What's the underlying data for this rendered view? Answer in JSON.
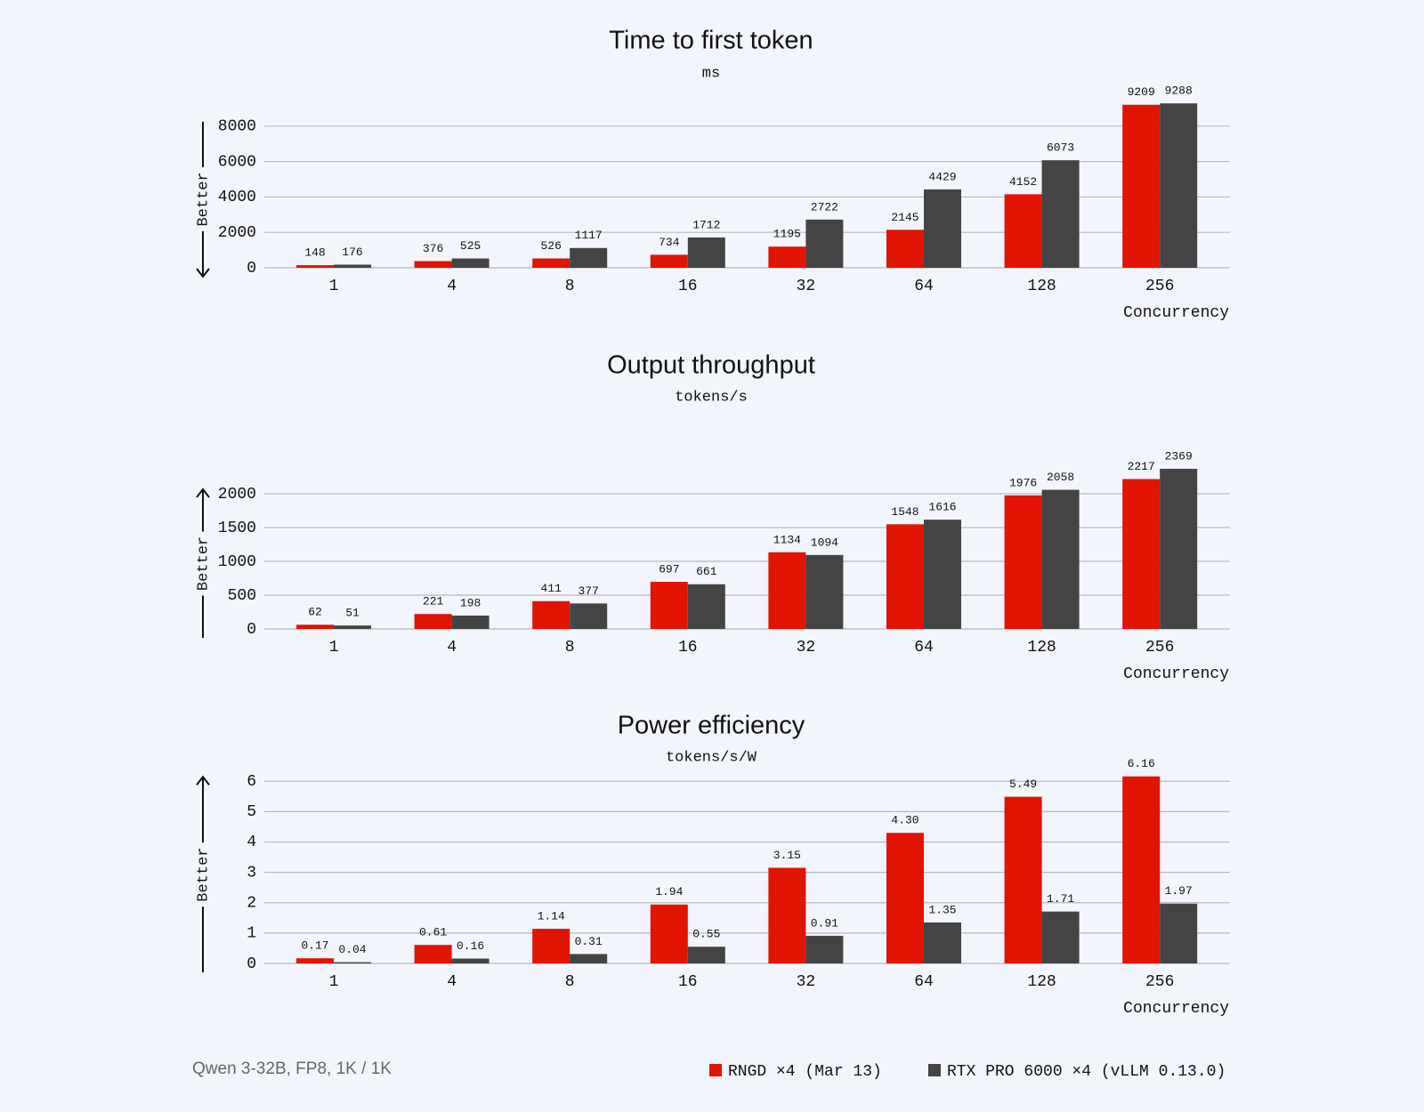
{
  "chart_data": [
    {
      "type": "bar",
      "title": "Time to first token",
      "subtitle": "ms",
      "x_label": "Concurrency",
      "y_annotation": "Better",
      "better_direction": "down",
      "categories": [
        "1",
        "4",
        "8",
        "16",
        "32",
        "64",
        "128",
        "256"
      ],
      "series": [
        {
          "name": "RNGD ×4 (Mar 13)",
          "color": "#e01400",
          "values": [
            148,
            376,
            526,
            734,
            1195,
            2145,
            4152,
            9209
          ]
        },
        {
          "name": "RTX PRO 6000 ×4 (vLLM 0.13.0)",
          "color": "#444444",
          "values": [
            176,
            525,
            1117,
            1712,
            2722,
            4429,
            6073,
            9288
          ]
        }
      ],
      "ylim": [
        0,
        9600
      ],
      "yticks": [
        0,
        2000,
        4000,
        6000,
        8000
      ],
      "grid": true
    },
    {
      "type": "bar",
      "title": "Output throughput",
      "subtitle": "tokens/s",
      "x_label": "Concurrency",
      "y_annotation": "Better",
      "better_direction": "up",
      "categories": [
        "1",
        "4",
        "8",
        "16",
        "32",
        "64",
        "128",
        "256"
      ],
      "series": [
        {
          "color": "#e01400",
          "values": [
            62,
            221,
            411,
            697,
            1134,
            1548,
            1976,
            2217
          ]
        },
        {
          "color": "#444444",
          "values": [
            51,
            198,
            377,
            661,
            1094,
            1616,
            2058,
            2369
          ]
        }
      ],
      "ylim": [
        0,
        2500
      ],
      "yticks": [
        0,
        500,
        1000,
        1500,
        2000
      ],
      "grid": true
    },
    {
      "type": "bar",
      "title": "Power efficiency",
      "subtitle": "tokens/s/W",
      "x_label": "Concurrency",
      "y_annotation": "Better",
      "better_direction": "up",
      "categories": [
        "1",
        "4",
        "8",
        "16",
        "32",
        "64",
        "128",
        "256"
      ],
      "series": [
        {
          "color": "#e01400",
          "values": [
            0.17,
            0.61,
            1.14,
            1.94,
            3.15,
            4.3,
            5.49,
            6.16
          ],
          "value_labels": [
            "0.17",
            "0.61",
            "1.14",
            "1.94",
            "3.15",
            "4.30",
            "5.49",
            "6.16"
          ]
        },
        {
          "color": "#444444",
          "values": [
            0.04,
            0.16,
            0.31,
            0.55,
            0.91,
            1.35,
            1.71,
            1.97
          ]
        }
      ],
      "ylim": [
        0,
        6.3
      ],
      "yticks": [
        0,
        1,
        2,
        3,
        4,
        5,
        6
      ],
      "grid": true
    }
  ],
  "note": "Qwen 3-32B, FP8, 1K / 1K"
}
